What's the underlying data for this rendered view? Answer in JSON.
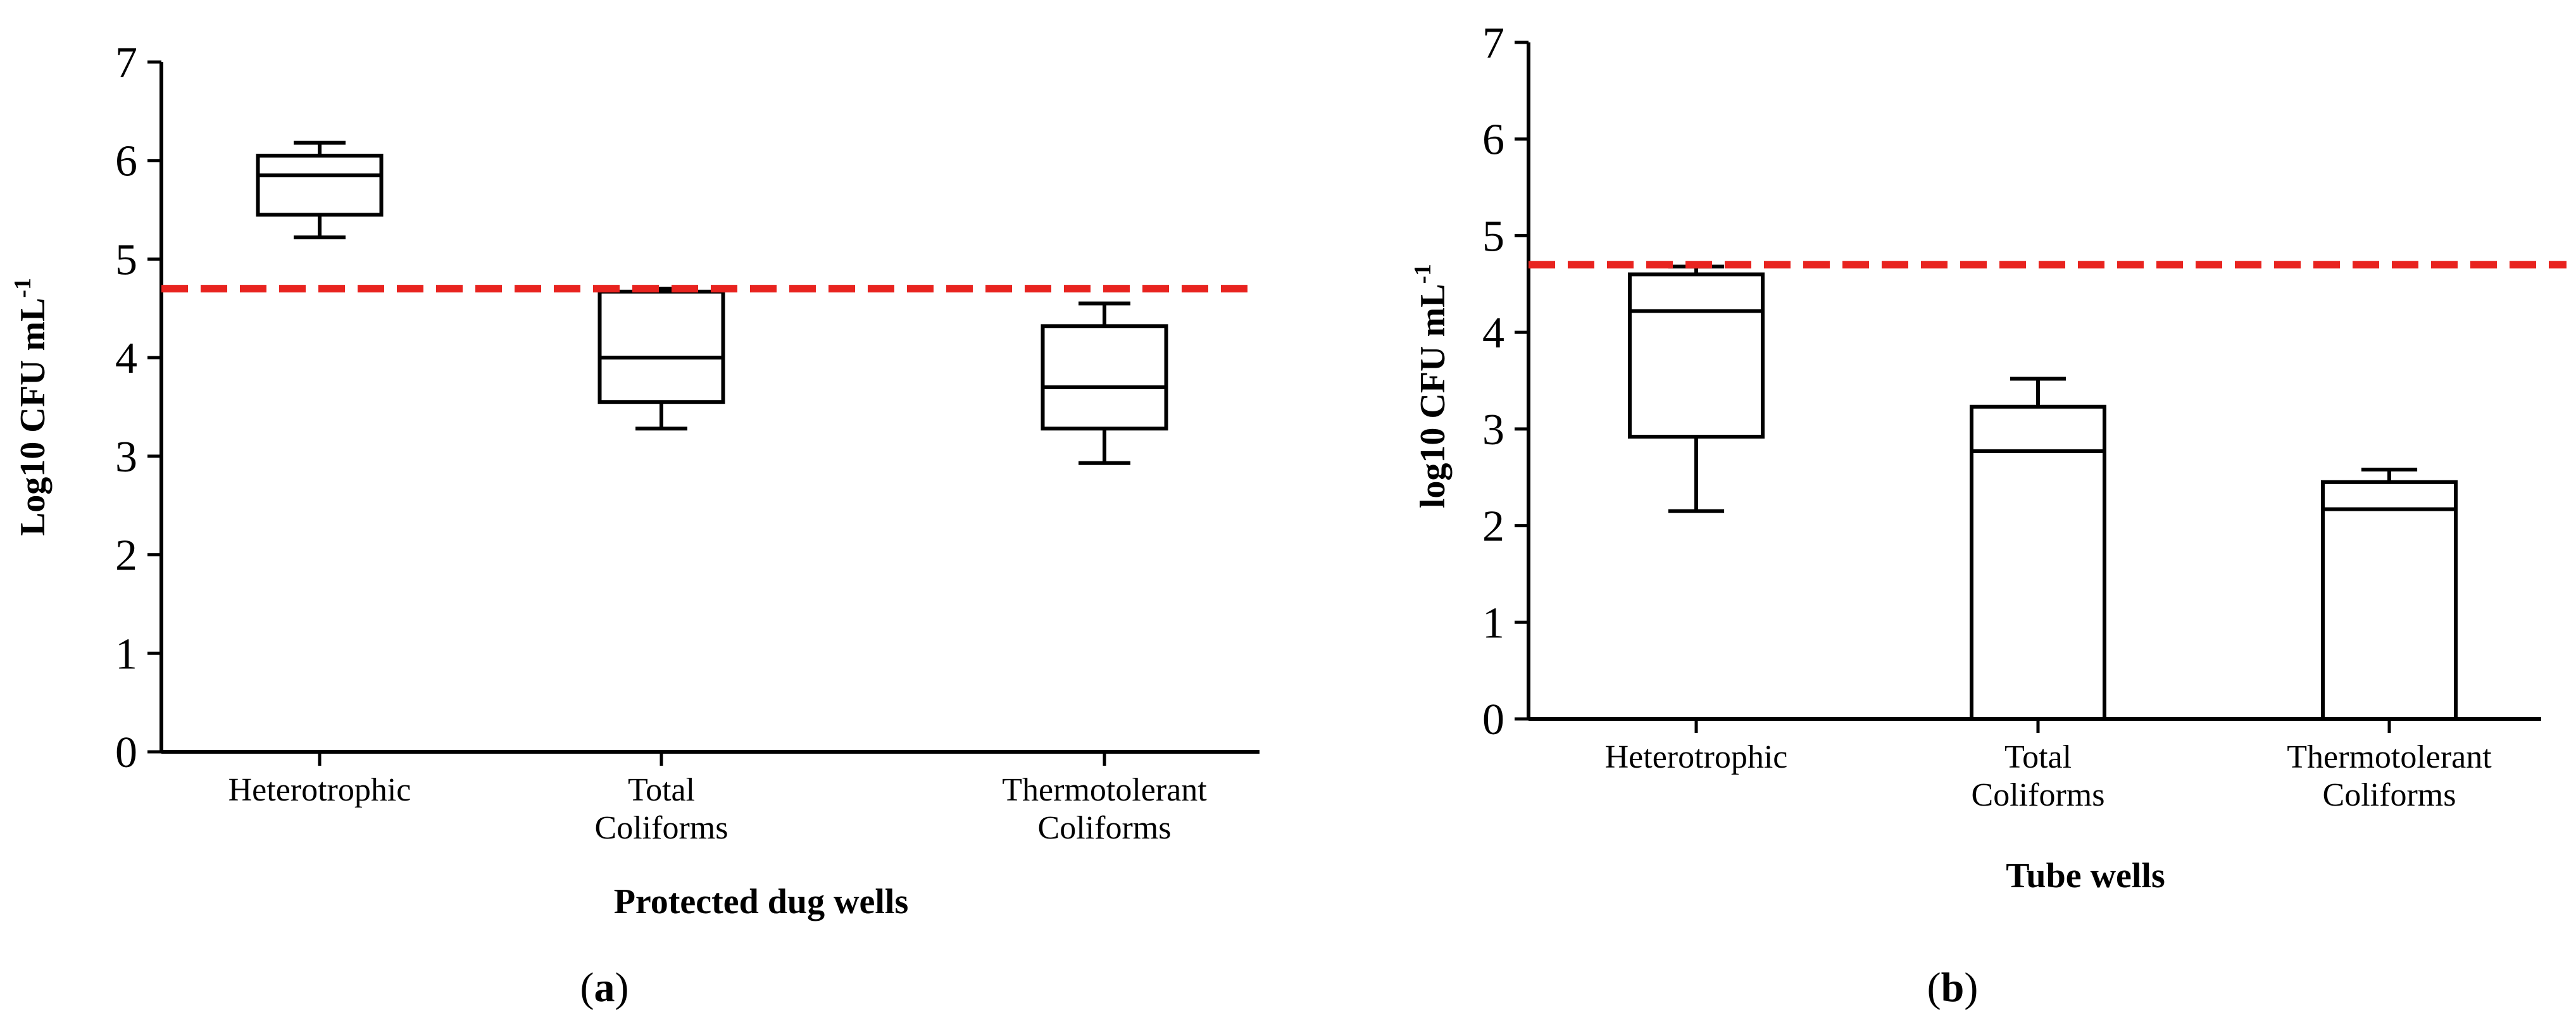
{
  "chart_data": [
    {
      "type": "box",
      "panel_label": "a",
      "xlabel": "Protected dug wells",
      "ylabel": "Log10 CFU mL",
      "ylabel_superscript": "-1",
      "ylim": [
        0,
        7
      ],
      "yticks": [
        "0",
        "1",
        "2",
        "3",
        "4",
        "5",
        "6",
        "7"
      ],
      "threshold": 4.7,
      "threshold_color": "#e8231f",
      "categories": [
        {
          "lines": [
            "Heterotrophic"
          ]
        },
        {
          "lines": [
            "Total",
            "Coliforms"
          ]
        },
        {
          "lines": [
            "Thermotolerant",
            "Coliforms"
          ]
        }
      ],
      "boxes": [
        {
          "min": 5.22,
          "q1": 5.45,
          "median": 5.85,
          "q3": 6.05,
          "max": 6.18
        },
        {
          "min": 3.28,
          "q1": 3.55,
          "median": 4.0,
          "q3": 4.67,
          "max": 4.7
        },
        {
          "min": 2.93,
          "q1": 3.28,
          "median": 3.7,
          "q3": 4.32,
          "max": 4.55
        }
      ]
    },
    {
      "type": "box",
      "panel_label": "b",
      "xlabel": "Tube wells",
      "ylabel": "log10 CFU mL",
      "ylabel_superscript": "-1",
      "ylim": [
        0,
        7
      ],
      "yticks": [
        "0",
        "1",
        "2",
        "3",
        "4",
        "5",
        "6",
        "7"
      ],
      "threshold": 4.7,
      "threshold_color": "#e8231f",
      "categories": [
        {
          "lines": [
            "Heterotrophic"
          ]
        },
        {
          "lines": [
            "Total",
            "Coliforms"
          ]
        },
        {
          "lines": [
            "Thermotolerant",
            "Coliforms"
          ]
        }
      ],
      "boxes": [
        {
          "min": 2.15,
          "q1": 2.92,
          "median": 4.22,
          "q3": 4.6,
          "max": 4.68
        },
        {
          "min": 0,
          "q1": 0,
          "median": 2.77,
          "q3": 3.23,
          "max": 3.52
        },
        {
          "min": 0,
          "q1": 0,
          "median": 2.17,
          "q3": 2.45,
          "max": 2.58
        }
      ]
    }
  ]
}
